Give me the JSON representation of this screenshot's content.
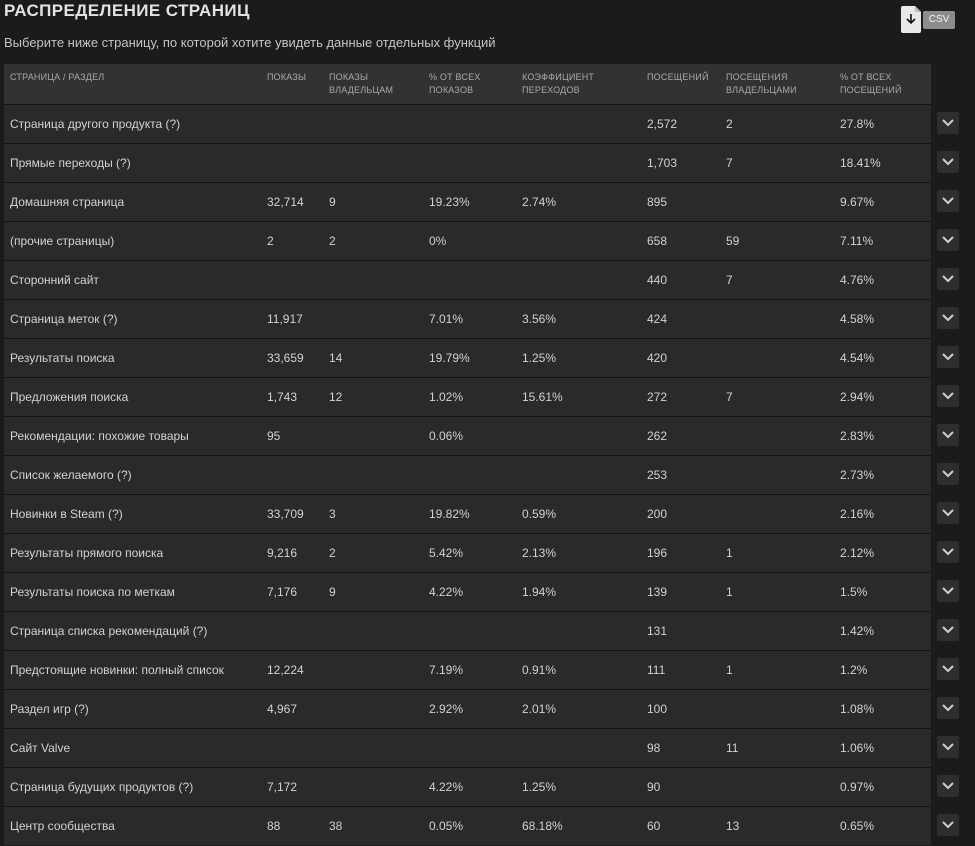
{
  "header": {
    "title": "РАСПРЕДЕЛЕНИЕ СТРАНИЦ",
    "subtitle": "Выберите ниже страницу, по которой хотите увидеть данные отдельных функций",
    "csv_label": "CSV"
  },
  "table": {
    "columns": [
      "СТРАНИЦА / РАЗДЕЛ",
      "ПОКАЗЫ",
      "ПОКАЗЫ ВЛАДЕЛЬЦАМ",
      "% ОТ ВСЕХ ПОКАЗОВ",
      "КОЭФФИЦИЕНТ ПЕРЕХОДОВ",
      "ПОСЕЩЕНИЙ",
      "ПОСЕЩЕНИЯ ВЛАДЕЛЬЦАМИ",
      "% ОТ ВСЕХ ПОСЕЩЕНИЙ"
    ],
    "rows": [
      [
        "Страница другого продукта (?)",
        "",
        "",
        "",
        "",
        "2,572",
        "2",
        "27.8%"
      ],
      [
        "Прямые переходы (?)",
        "",
        "",
        "",
        "",
        "1,703",
        "7",
        "18.41%"
      ],
      [
        "Домашняя страница",
        "32,714",
        "9",
        "19.23%",
        "2.74%",
        "895",
        "",
        "9.67%"
      ],
      [
        "(прочие страницы)",
        "2",
        "2",
        "0%",
        "",
        "658",
        "59",
        "7.11%"
      ],
      [
        "Сторонний сайт",
        "",
        "",
        "",
        "",
        "440",
        "7",
        "4.76%"
      ],
      [
        "Страница меток (?)",
        "11,917",
        "",
        "7.01%",
        "3.56%",
        "424",
        "",
        "4.58%"
      ],
      [
        "Результаты поиска",
        "33,659",
        "14",
        "19.79%",
        "1.25%",
        "420",
        "",
        "4.54%"
      ],
      [
        "Предложения поиска",
        "1,743",
        "12",
        "1.02%",
        "15.61%",
        "272",
        "7",
        "2.94%"
      ],
      [
        "Рекомендации: похожие товары",
        "95",
        "",
        "0.06%",
        "",
        "262",
        "",
        "2.83%"
      ],
      [
        "Список желаемого (?)",
        "",
        "",
        "",
        "",
        "253",
        "",
        "2.73%"
      ],
      [
        "Новинки в Steam (?)",
        "33,709",
        "3",
        "19.82%",
        "0.59%",
        "200",
        "",
        "2.16%"
      ],
      [
        "Результаты прямого поиска",
        "9,216",
        "2",
        "5.42%",
        "2.13%",
        "196",
        "1",
        "2.12%"
      ],
      [
        "Результаты поиска по меткам",
        "7,176",
        "9",
        "4.22%",
        "1.94%",
        "139",
        "1",
        "1.5%"
      ],
      [
        "Страница списка рекомендаций (?)",
        "",
        "",
        "",
        "",
        "131",
        "",
        "1.42%"
      ],
      [
        "Предстоящие новинки: полный список",
        "12,224",
        "",
        "7.19%",
        "0.91%",
        "111",
        "1",
        "1.2%"
      ],
      [
        "Раздел игр (?)",
        "4,967",
        "",
        "2.92%",
        "2.01%",
        "100",
        "",
        "1.08%"
      ],
      [
        "Сайт Valve",
        "",
        "",
        "",
        "",
        "98",
        "11",
        "1.06%"
      ],
      [
        "Страница будущих продуктов (?)",
        "7,172",
        "",
        "4.22%",
        "1.25%",
        "90",
        "",
        "0.97%"
      ],
      [
        "Центр сообщества",
        "88",
        "38",
        "0.05%",
        "68.18%",
        "60",
        "13",
        "0.65%"
      ]
    ]
  },
  "icons": {
    "csv": "download-csv-icon",
    "expand": "chevron-down-icon"
  },
  "colors": {
    "background": "#1b1b1b",
    "row": "#2a2a2a",
    "header_row": "#323232"
  }
}
